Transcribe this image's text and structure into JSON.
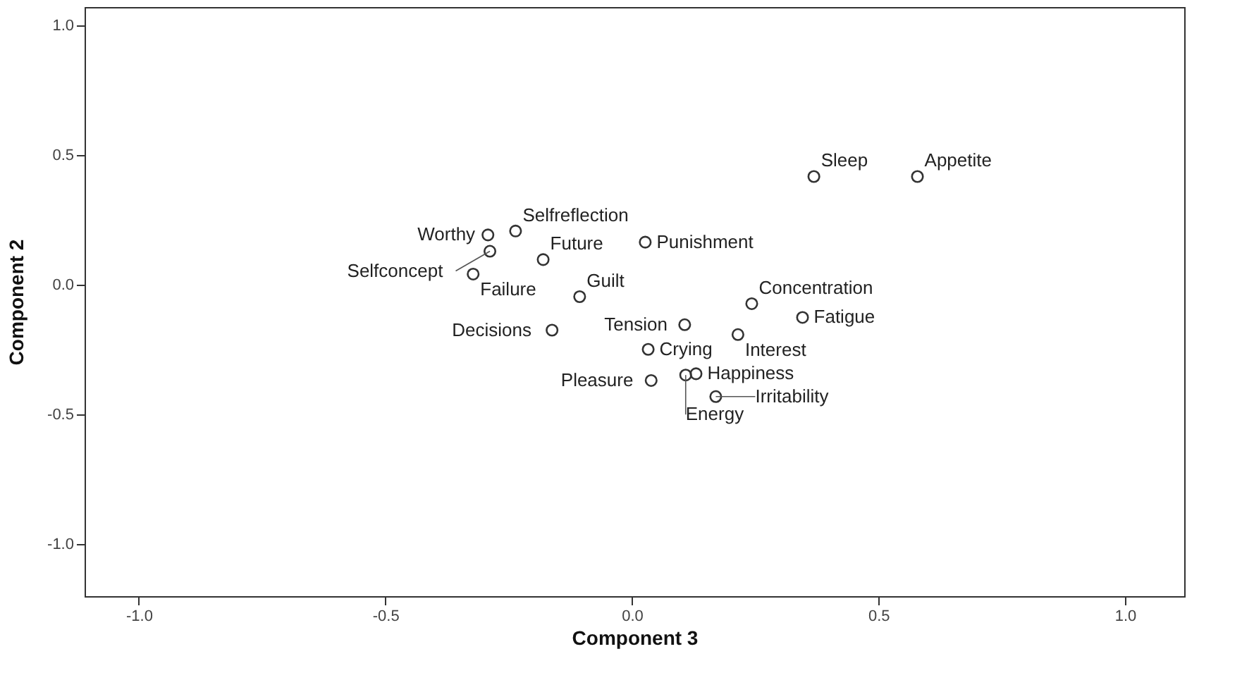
{
  "chart_data": {
    "type": "scatter",
    "xlabel": "Component 3",
    "ylabel": "Component 2",
    "xlim": [
      -1.11,
      1.12
    ],
    "ylim": [
      -1.2,
      1.07
    ],
    "xticks": [
      {
        "value": -1,
        "label": "-1.0"
      },
      {
        "value": -0.5,
        "label": "-0.5"
      },
      {
        "value": 0,
        "label": "0.0"
      },
      {
        "value": 0.5,
        "label": "0.5"
      },
      {
        "value": 1,
        "label": "1.0"
      }
    ],
    "yticks": [
      {
        "value": -1,
        "label": "-1.0"
      },
      {
        "value": -0.5,
        "label": "-0.5"
      },
      {
        "value": 0,
        "label": "0.0"
      },
      {
        "value": 0.5,
        "label": "0.5"
      },
      {
        "value": 1,
        "label": "1.0"
      }
    ],
    "marker": "circle",
    "grid": false,
    "legend": false,
    "series": [
      {
        "name": "Sleep",
        "color": "#333333",
        "x": [
          0.369
        ],
        "values": [
          0.417
        ]
      },
      {
        "name": "Appetite",
        "color": "#333333",
        "x": [
          0.579
        ],
        "values": [
          0.417
        ]
      },
      {
        "name": "Selfreflection",
        "color": "#333333",
        "x": [
          -0.236
        ],
        "values": [
          0.207
        ]
      },
      {
        "name": "Worthy",
        "color": "#333333",
        "x": [
          -0.292
        ],
        "values": [
          0.192
        ]
      },
      {
        "name": "Selfconcept",
        "color": "#333333",
        "x": [
          -0.288
        ],
        "values": [
          0.129
        ]
      },
      {
        "name": "Punishment",
        "color": "#333333",
        "x": [
          0.027
        ],
        "values": [
          0.164
        ]
      },
      {
        "name": "Future",
        "color": "#333333",
        "x": [
          -0.18
        ],
        "values": [
          0.097
        ]
      },
      {
        "name": "Failure",
        "color": "#333333",
        "x": [
          -0.322
        ],
        "values": [
          0.041
        ]
      },
      {
        "name": "Guilt",
        "color": "#333333",
        "x": [
          -0.106
        ],
        "values": [
          -0.046
        ]
      },
      {
        "name": "Concentration",
        "color": "#333333",
        "x": [
          0.243
        ],
        "values": [
          -0.073
        ]
      },
      {
        "name": "Fatigue",
        "color": "#333333",
        "x": [
          0.346
        ],
        "values": [
          -0.126
        ]
      },
      {
        "name": "Tension",
        "color": "#333333",
        "x": [
          0.107
        ],
        "values": [
          -0.154
        ]
      },
      {
        "name": "Decisions",
        "color": "#333333",
        "x": [
          -0.162
        ],
        "values": [
          -0.175
        ]
      },
      {
        "name": "Interest",
        "color": "#333333",
        "x": [
          0.215
        ],
        "values": [
          -0.192
        ]
      },
      {
        "name": "Crying",
        "color": "#333333",
        "x": [
          0.033
        ],
        "values": [
          -0.249
        ]
      },
      {
        "name": "Happiness",
        "color": "#333333",
        "x": [
          0.13
        ],
        "values": [
          -0.343
        ]
      },
      {
        "name": "Energy",
        "color": "#333333",
        "x": [
          0.109
        ],
        "values": [
          -0.348
        ]
      },
      {
        "name": "Pleasure",
        "color": "#333333",
        "x": [
          0.039
        ],
        "values": [
          -0.369
        ]
      },
      {
        "name": "Irritability",
        "color": "#333333",
        "x": [
          0.17
        ],
        "values": [
          -0.431
        ]
      }
    ]
  }
}
